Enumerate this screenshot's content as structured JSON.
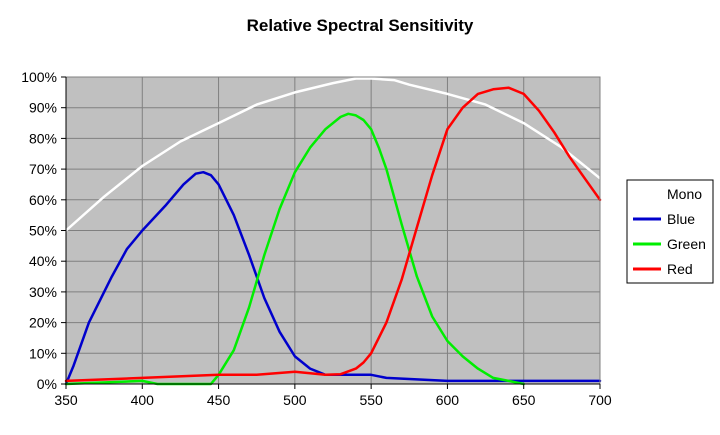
{
  "chart_data": {
    "type": "line",
    "title": "Relative Spectral Sensitivity",
    "xlabel": "",
    "ylabel": "",
    "xlim": [
      350,
      700
    ],
    "ylim": [
      0,
      100
    ],
    "x_ticks": [
      350,
      400,
      450,
      500,
      550,
      600,
      650,
      700
    ],
    "y_ticks": [
      0,
      10,
      20,
      30,
      40,
      50,
      60,
      70,
      80,
      90,
      100
    ],
    "y_tick_labels": [
      "0%",
      "10%",
      "20%",
      "30%",
      "40%",
      "50%",
      "60%",
      "70%",
      "80%",
      "90%",
      "100%"
    ],
    "grid": true,
    "legend_position": "right",
    "plot_background": "#c0c0c0",
    "series": [
      {
        "name": "Mono",
        "color": "#ffffff",
        "x": [
          350,
          375,
          400,
          425,
          450,
          475,
          500,
          525,
          540,
          550,
          565,
          575,
          600,
          625,
          650,
          675,
          700
        ],
        "y": [
          50,
          61,
          71,
          79,
          85,
          91,
          95,
          98,
          99.5,
          99.5,
          99,
          97.5,
          94.5,
          91,
          85,
          77,
          67
        ]
      },
      {
        "name": "Blue",
        "color": "#0000cc",
        "x": [
          350,
          355,
          365,
          380,
          390,
          400,
          415,
          427,
          435,
          440,
          445,
          450,
          460,
          470,
          480,
          490,
          500,
          510,
          520,
          530,
          550,
          560,
          600,
          650,
          700
        ],
        "y": [
          0,
          6,
          20,
          35,
          44,
          50,
          58,
          65,
          68.5,
          69,
          68,
          65,
          55,
          42,
          28,
          17,
          9,
          5,
          3,
          3,
          3,
          2,
          1,
          1,
          1
        ]
      },
      {
        "name": "Green",
        "color": "#00ee00",
        "x": [
          350,
          400,
          410,
          445,
          450,
          460,
          470,
          480,
          490,
          500,
          510,
          520,
          530,
          535,
          540,
          545,
          550,
          555,
          560,
          570,
          580,
          590,
          600,
          610,
          620,
          630,
          640,
          650
        ],
        "y": [
          0,
          1,
          0,
          0,
          3,
          11,
          25,
          42,
          57,
          69,
          77,
          83,
          87,
          88,
          87.5,
          86,
          83,
          77,
          70,
          52,
          35,
          22,
          14,
          9,
          5,
          2,
          1,
          0
        ]
      },
      {
        "name": "Red",
        "color": "#ff0000",
        "x": [
          350,
          400,
          450,
          475,
          500,
          510,
          520,
          530,
          540,
          545,
          550,
          560,
          570,
          580,
          590,
          600,
          610,
          620,
          630,
          640,
          650,
          660,
          670,
          680,
          690,
          700
        ],
        "y": [
          1,
          2,
          3,
          3,
          4,
          3.5,
          3,
          3.2,
          5,
          7,
          10,
          20,
          34,
          51,
          68,
          83,
          90,
          94.5,
          96,
          96.5,
          94.5,
          89,
          82,
          74,
          67,
          60
        ]
      }
    ]
  }
}
